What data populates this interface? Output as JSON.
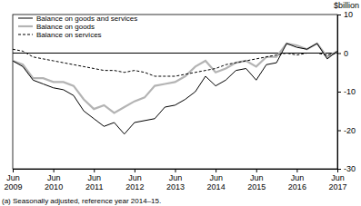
{
  "chart_data": {
    "type": "line",
    "y_label": "$billion",
    "footnote": "(a) Seasonally adjusted, reference year 2014–15.",
    "categories": [
      "Jun 2009",
      null,
      null,
      null,
      "Jun 2010",
      null,
      null,
      null,
      "Jun 2011",
      null,
      null,
      null,
      "Jun 2012",
      null,
      null,
      null,
      "Jun 2013",
      null,
      null,
      null,
      "Jun 2014",
      null,
      null,
      null,
      "Jun 2015",
      null,
      null,
      null,
      "Jun 2016",
      null,
      null,
      null,
      "Jun 2017"
    ],
    "series": [
      {
        "name": "Balance on goods and services",
        "color": "#000000",
        "line_style": "solid",
        "values": [
          -2,
          -3.5,
          -7,
          -8,
          -9,
          -9.5,
          -11,
          -15,
          -17,
          -19,
          -18,
          -21,
          -18,
          -17.5,
          -17,
          -14,
          -13.5,
          -12,
          -10,
          -6,
          -8.5,
          -7,
          -4.5,
          -4,
          -7,
          -3,
          -2.5,
          2.5,
          1.5,
          1,
          2.5,
          -1.5,
          0.5
        ]
      },
      {
        "name": "Balance on goods",
        "color": "#b4b4b4",
        "line_style": "solid",
        "values": [
          -2,
          -3,
          -6.5,
          -6.5,
          -7.5,
          -7.5,
          -8.5,
          -12,
          -14.5,
          -13.5,
          -15.5,
          -14,
          -12.5,
          -11.5,
          -8.5,
          -8,
          -7.5,
          -6,
          -3.5,
          -2,
          -5,
          -4,
          -2.5,
          -2,
          -3.5,
          -1,
          -1,
          2.5,
          2,
          1,
          2.5,
          -1,
          0.5
        ]
      },
      {
        "name": "Balance on services",
        "color": "#000000",
        "line_style": "dashed",
        "values": [
          1,
          0.5,
          -1,
          -1.5,
          -2,
          -2.5,
          -3,
          -3.5,
          -4,
          -4.5,
          -4.5,
          -5,
          -4.5,
          -5,
          -6,
          -6,
          -6,
          -5.5,
          -5,
          -4.5,
          -4,
          -3,
          -2.5,
          -2,
          -1.5,
          -1,
          -0.5,
          0,
          -0.5,
          0,
          0,
          -0.5,
          0
        ]
      }
    ],
    "ylim": [
      -30,
      10
    ],
    "yticks": [
      -30,
      -20,
      -10,
      0,
      10
    ],
    "legend": "top-left"
  }
}
